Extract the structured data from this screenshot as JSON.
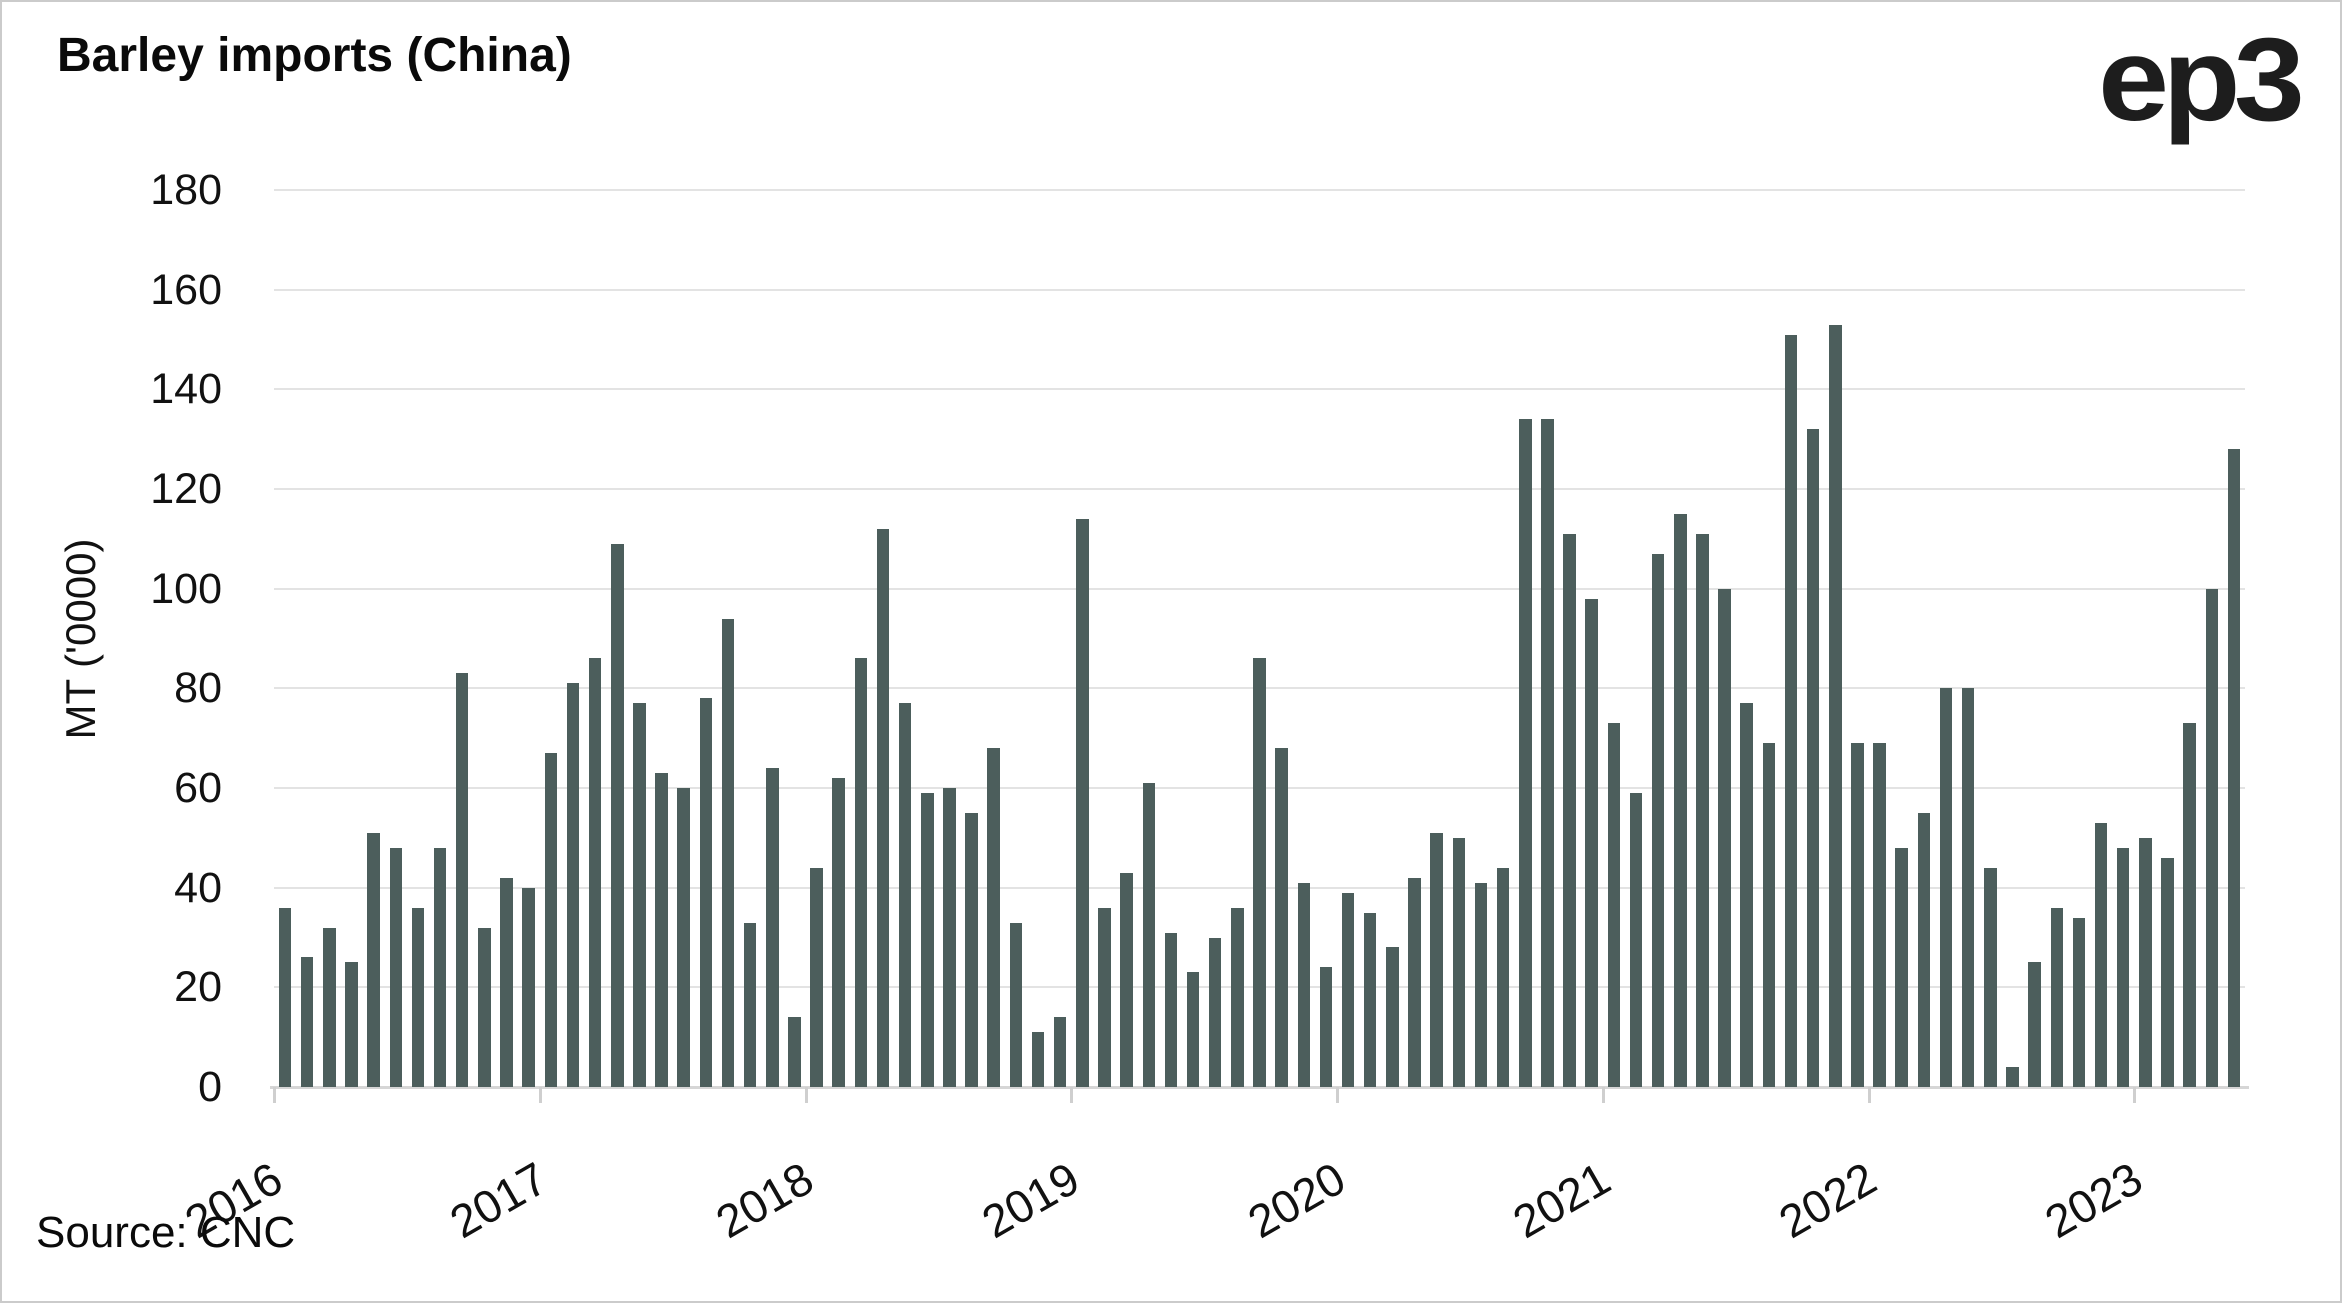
{
  "title": "Barley imports (China)",
  "logo": "ep3",
  "source": "Source: CNC",
  "colors": {
    "bar": "#4c5e5c",
    "gridline": "#e3e3e3",
    "axis_line": "#d6d6d6",
    "text": "#0f0f0f",
    "frame_border": "#cbcbcb",
    "background": "#ffffff"
  },
  "chart_data": {
    "type": "bar",
    "title": "Barley imports (China)",
    "ylabel": "MT ('0000)",
    "xlabel": "",
    "ylim": [
      0,
      180
    ],
    "yticks": [
      0,
      20,
      40,
      60,
      80,
      100,
      120,
      140,
      160,
      180
    ],
    "grid": "horizontal",
    "legend": "none",
    "year_ticks": [
      "2016",
      "2017",
      "2018",
      "2019",
      "2020",
      "2021",
      "2022",
      "2023"
    ],
    "x": [
      "2016-01",
      "2016-02",
      "2016-03",
      "2016-04",
      "2016-05",
      "2016-06",
      "2016-07",
      "2016-08",
      "2016-09",
      "2016-10",
      "2016-11",
      "2016-12",
      "2017-01",
      "2017-02",
      "2017-03",
      "2017-04",
      "2017-05",
      "2017-06",
      "2017-07",
      "2017-08",
      "2017-09",
      "2017-10",
      "2017-11",
      "2017-12",
      "2018-01",
      "2018-02",
      "2018-03",
      "2018-04",
      "2018-05",
      "2018-06",
      "2018-07",
      "2018-08",
      "2018-09",
      "2018-10",
      "2018-11",
      "2018-12",
      "2019-01",
      "2019-02",
      "2019-03",
      "2019-04",
      "2019-05",
      "2019-06",
      "2019-07",
      "2019-08",
      "2019-09",
      "2019-10",
      "2019-11",
      "2019-12",
      "2020-01",
      "2020-02",
      "2020-03",
      "2020-04",
      "2020-05",
      "2020-06",
      "2020-07",
      "2020-08",
      "2020-09",
      "2020-10",
      "2020-11",
      "2020-12",
      "2021-01",
      "2021-02",
      "2021-03",
      "2021-04",
      "2021-05",
      "2021-06",
      "2021-07",
      "2021-08",
      "2021-09",
      "2021-10",
      "2021-11",
      "2021-12",
      "2022-01",
      "2022-02",
      "2022-03",
      "2022-04",
      "2022-05",
      "2022-06",
      "2022-07",
      "2022-08",
      "2022-09",
      "2022-10",
      "2022-11",
      "2022-12",
      "2023-01",
      "2023-02",
      "2023-03",
      "2023-04",
      "2023-05"
    ],
    "values": [
      36,
      26,
      32,
      25,
      51,
      48,
      36,
      48,
      83,
      32,
      42,
      40,
      67,
      81,
      86,
      109,
      77,
      63,
      60,
      78,
      94,
      33,
      64,
      14,
      44,
      62,
      86,
      112,
      77,
      59,
      60,
      55,
      68,
      33,
      11,
      14,
      114,
      36,
      43,
      61,
      31,
      23,
      30,
      36,
      86,
      68,
      41,
      24,
      39,
      35,
      28,
      42,
      51,
      50,
      41,
      44,
      134,
      134,
      111,
      98,
      73,
      59,
      107,
      115,
      111,
      100,
      77,
      69,
      151,
      132,
      153,
      69,
      69,
      48,
      55,
      80,
      80,
      44,
      4,
      25,
      36,
      34,
      53,
      48,
      50,
      46,
      73,
      100,
      128
    ]
  }
}
